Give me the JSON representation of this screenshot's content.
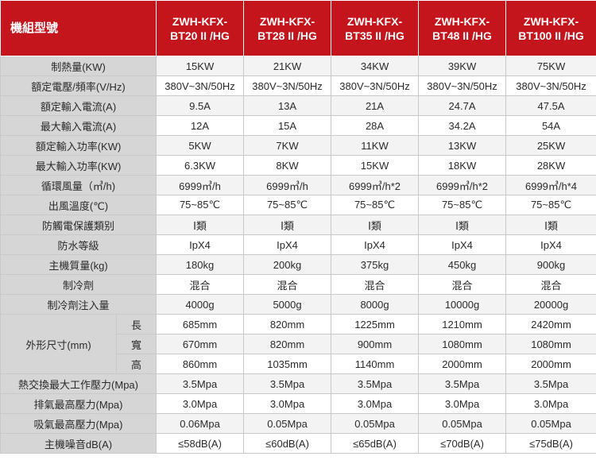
{
  "header": {
    "title": "機組型號",
    "models": [
      {
        "line1": "ZWH-KFX-",
        "line2": "BT20 II /HG"
      },
      {
        "line1": "ZWH-KFX-",
        "line2": "BT28 II /HG"
      },
      {
        "line1": "ZWH-KFX-",
        "line2": "BT35 II /HG"
      },
      {
        "line1": "ZWH-KFX-",
        "line2": "BT48 II /HG"
      },
      {
        "line1": "ZWH-KFX-",
        "line2": "BT100 II /HG"
      }
    ]
  },
  "rows": [
    {
      "label": "制熱量(KW)",
      "values": [
        "15KW",
        "21KW",
        "34KW",
        "39KW",
        "75KW"
      ]
    },
    {
      "label": "額定電壓/頻率(V/Hz)",
      "values": [
        "380V~3N/50Hz",
        "380V~3N/50Hz",
        "380V~3N/50Hz",
        "380V~3N/50Hz",
        "380V~3N/50Hz"
      ]
    },
    {
      "label": "額定輸入電流(A)",
      "values": [
        "9.5A",
        "13A",
        "21A",
        "24.7A",
        "47.5A"
      ]
    },
    {
      "label": "最大輸入電流(A)",
      "values": [
        "12A",
        "15A",
        "28A",
        "34.2A",
        "54A"
      ]
    },
    {
      "label": "額定輸入功率(KW)",
      "values": [
        "5KW",
        "7KW",
        "11KW",
        "13KW",
        "25KW"
      ]
    },
    {
      "label": "最大輸入功率(KW)",
      "values": [
        "6.3KW",
        "8KW",
        "15KW",
        "18KW",
        "28KW"
      ]
    },
    {
      "label": "循環風量（㎥/h)",
      "values": [
        "6999㎥/h",
        "6999㎥/h",
        "6999㎥/h*2",
        "6999㎥/h*2",
        "6999㎥/h*4"
      ]
    },
    {
      "label": "出風溫度(℃)",
      "values": [
        "75~85℃",
        "75~85℃",
        "75~85℃",
        "75~85℃",
        "75~85℃"
      ]
    },
    {
      "label": "防觸電保護類别",
      "values": [
        "Ⅰ類",
        "Ⅰ類",
        "Ⅰ類",
        "Ⅰ類",
        "Ⅰ類"
      ]
    },
    {
      "label": "防水等級",
      "values": [
        "IpX4",
        "IpX4",
        "IpX4",
        "IpX4",
        "IpX4"
      ]
    },
    {
      "label": "主機質量(kg)",
      "values": [
        "180kg",
        "200kg",
        "375kg",
        "450kg",
        "900kg"
      ]
    },
    {
      "label": "制冷劑",
      "values": [
        "混合",
        "混合",
        "混合",
        "混合",
        "混合"
      ]
    },
    {
      "label": "制冷劑注入量",
      "values": [
        "4000g",
        "5000g",
        "8000g",
        "10000g",
        "20000g"
      ]
    }
  ],
  "dimensions": {
    "label": "外形尺寸(mm)",
    "rows": [
      {
        "sublabel": "長",
        "values": [
          "685mm",
          "820mm",
          "1225mm",
          "1210mm",
          "2420mm"
        ]
      },
      {
        "sublabel": "寬",
        "values": [
          "670mm",
          "820mm",
          "900mm",
          "1080mm",
          "1080mm"
        ]
      },
      {
        "sublabel": "高",
        "values": [
          "860mm",
          "1035mm",
          "1140mm",
          "2000mm",
          "2000mm"
        ]
      }
    ]
  },
  "rows_after": [
    {
      "label": "熱交換最大工作壓力(Mpa)",
      "values": [
        "3.5Mpa",
        "3.5Mpa",
        "3.5Mpa",
        "3.5Mpa",
        "3.5Mpa"
      ]
    },
    {
      "label": "排氣最高壓力(Mpa)",
      "values": [
        "3.0Mpa",
        "3.0Mpa",
        "3.0Mpa",
        "3.0Mpa",
        "3.0Mpa"
      ]
    },
    {
      "label": "吸氣最高壓力(Mpa)",
      "values": [
        "0.06Mpa",
        "0.05Mpa",
        "0.05Mpa",
        "0.05Mpa",
        "0.05Mpa"
      ]
    },
    {
      "label": "主機噪音dB(A)",
      "values": [
        "≤58dB(A)",
        "≤60dB(A)",
        "≤65dB(A)",
        "≤70dB(A)",
        "≤75dB(A)"
      ]
    }
  ],
  "colors": {
    "header_red": "#c4141c",
    "label_gray": "#d6d6d6",
    "label_text": "#c4141c"
  }
}
